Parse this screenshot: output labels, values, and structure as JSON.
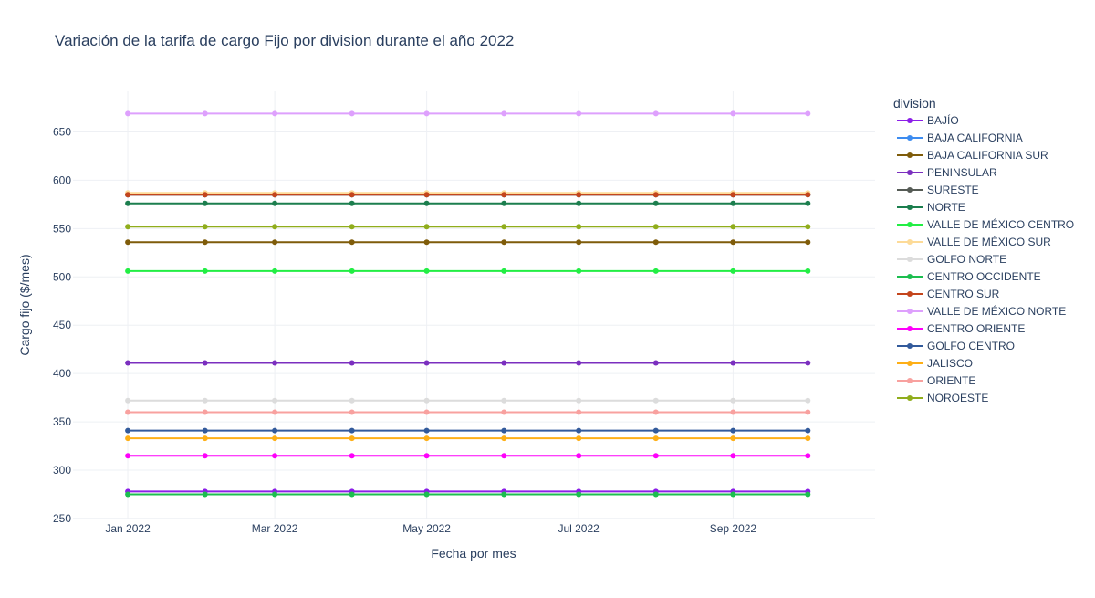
{
  "chart_data": {
    "type": "line",
    "title": "Variación de la tarifa de cargo Fijo por division durante el año 2022",
    "xlabel": "Fecha por mes",
    "ylabel": "Cargo fijo ($/mes)",
    "ylim": [
      250,
      692
    ],
    "yticks": [
      250,
      300,
      350,
      400,
      450,
      500,
      550,
      600,
      650
    ],
    "x": [
      "2022-01-01",
      "2022-02-01",
      "2022-03-01",
      "2022-04-01",
      "2022-05-01",
      "2022-06-01",
      "2022-07-01",
      "2022-08-01",
      "2022-09-01",
      "2022-10-01"
    ],
    "xlim": [
      "2021-12-10",
      "2022-10-28"
    ],
    "xticks": [
      {
        "date": "2022-01-01",
        "label": "Jan 2022"
      },
      {
        "date": "2022-03-01",
        "label": "Mar 2022"
      },
      {
        "date": "2022-05-01",
        "label": "May 2022"
      },
      {
        "date": "2022-07-01",
        "label": "Jul 2022"
      },
      {
        "date": "2022-09-01",
        "label": "Sep 2022"
      }
    ],
    "grid": true,
    "legend_title": "division",
    "legend_position": "right",
    "series": [
      {
        "name": "BAJÍO",
        "color": "#8b1ee8",
        "values": [
          278,
          278,
          278,
          278,
          278,
          278,
          278,
          278,
          278,
          278
        ]
      },
      {
        "name": "BAJA CALIFORNIA",
        "color": "#3d8cf0",
        "values": [
          585,
          585,
          585,
          585,
          585,
          585,
          585,
          585,
          585,
          585
        ]
      },
      {
        "name": "BAJA CALIFORNIA SUR",
        "color": "#7f5c0a",
        "values": [
          536,
          536,
          536,
          536,
          536,
          536,
          536,
          536,
          536,
          536
        ]
      },
      {
        "name": "PENINSULAR",
        "color": "#7b2fbf",
        "values": [
          411,
          411,
          411,
          411,
          411,
          411,
          411,
          411,
          411,
          411
        ]
      },
      {
        "name": "SURESTE",
        "color": "#555b55",
        "values": [
          585,
          585,
          585,
          585,
          585,
          585,
          585,
          585,
          585,
          585
        ]
      },
      {
        "name": "NORTE",
        "color": "#1c7e4e",
        "values": [
          576,
          576,
          576,
          576,
          576,
          576,
          576,
          576,
          576,
          576
        ]
      },
      {
        "name": "VALLE DE MÉXICO CENTRO",
        "color": "#22ee44",
        "values": [
          506,
          506,
          506,
          506,
          506,
          506,
          506,
          506,
          506,
          506
        ]
      },
      {
        "name": "VALLE DE MÉXICO SUR",
        "color": "#fddb98",
        "values": [
          587,
          587,
          587,
          587,
          587,
          587,
          587,
          587,
          587,
          587
        ]
      },
      {
        "name": "GOLFO NORTE",
        "color": "#dcdcdc",
        "values": [
          372,
          372,
          372,
          372,
          372,
          372,
          372,
          372,
          372,
          372
        ]
      },
      {
        "name": "CENTRO OCCIDENTE",
        "color": "#1cbe4f",
        "values": [
          275,
          275,
          275,
          275,
          275,
          275,
          275,
          275,
          275,
          275
        ]
      },
      {
        "name": "CENTRO SUR",
        "color": "#c4451c",
        "values": [
          585,
          585,
          585,
          585,
          585,
          585,
          585,
          585,
          585,
          585
        ]
      },
      {
        "name": "VALLE DE MÉXICO NORTE",
        "color": "#dea0fd",
        "values": [
          669,
          669,
          669,
          669,
          669,
          669,
          669,
          669,
          669,
          669
        ]
      },
      {
        "name": "CENTRO ORIENTE",
        "color": "#fe00fa",
        "values": [
          315,
          315,
          315,
          315,
          315,
          315,
          315,
          315,
          315,
          315
        ]
      },
      {
        "name": "GOLFO CENTRO",
        "color": "#325a9b",
        "values": [
          341,
          341,
          341,
          341,
          341,
          341,
          341,
          341,
          341,
          341
        ]
      },
      {
        "name": "JALISCO",
        "color": "#feaf16",
        "values": [
          333,
          333,
          333,
          333,
          333,
          333,
          333,
          333,
          333,
          333
        ]
      },
      {
        "name": "ORIENTE",
        "color": "#f8a19f",
        "values": [
          360,
          360,
          360,
          360,
          360,
          360,
          360,
          360,
          360,
          360
        ]
      },
      {
        "name": "NOROESTE",
        "color": "#90ad1c",
        "values": [
          552,
          552,
          552,
          552,
          552,
          552,
          552,
          552,
          552,
          552
        ]
      }
    ]
  }
}
